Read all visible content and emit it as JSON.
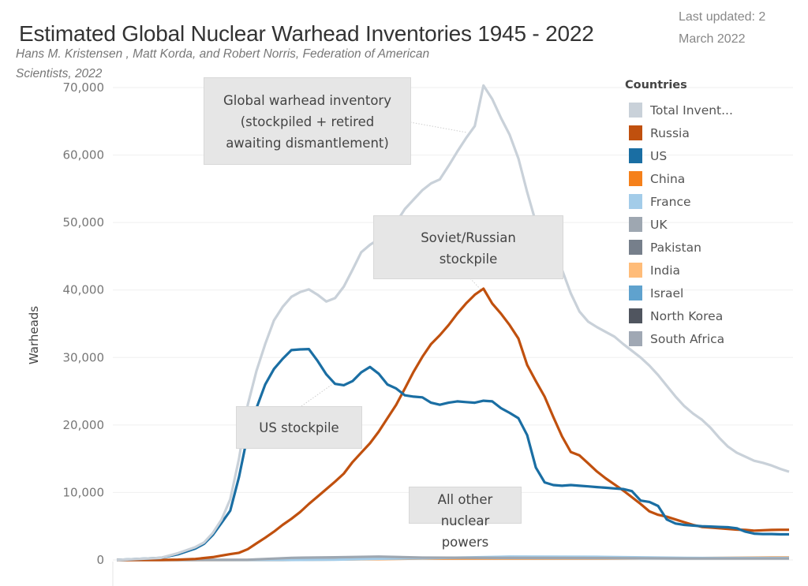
{
  "header": {
    "title": "Estimated Global Nuclear Warhead Inventories 1945 - 2022",
    "subtitle": "Hans M. Kristensen , Matt Korda, and Robert Norris, Federation of American Scientists, 2022",
    "last_updated": "Last updated: 2 March 2022"
  },
  "legend": {
    "title": "Countries",
    "items": [
      {
        "label": "Total Invent...",
        "color": "#c9d1d9"
      },
      {
        "label": "Russia",
        "color": "#c0500e"
      },
      {
        "label": "US",
        "color": "#1a6ea3"
      },
      {
        "label": "China",
        "color": "#f5801a"
      },
      {
        "label": "France",
        "color": "#a3cce9"
      },
      {
        "label": "UK",
        "color": "#9ea7b1"
      },
      {
        "label": "Pakistan",
        "color": "#767f8b"
      },
      {
        "label": "India",
        "color": "#ffbc79"
      },
      {
        "label": "Israel",
        "color": "#5fa2ce"
      },
      {
        "label": "North Korea",
        "color": "#50555f"
      },
      {
        "label": "South Africa",
        "color": "#a0a8b4"
      }
    ]
  },
  "annotations": {
    "global": "Global warhead inventory (stockpiled + retired awaiting dismantlement)",
    "global_lines": [
      "Global warhead inventory",
      "(stockpiled + retired",
      "awaiting dismantlement)"
    ],
    "soviet_lines": [
      "Soviet/Russian",
      "stockpile"
    ],
    "us": "US stockpile",
    "others_lines": [
      "All other",
      "nuclear",
      "powers"
    ]
  },
  "chart_data": {
    "type": "line",
    "title": "Estimated Global Nuclear Warhead Inventories 1945 - 2022",
    "xlabel": "",
    "ylabel": "Warheads",
    "xlim": [
      1945,
      2022
    ],
    "ylim": [
      0,
      70000
    ],
    "yticks": [
      0,
      10000,
      20000,
      30000,
      40000,
      50000,
      60000,
      70000
    ],
    "ytick_labels": [
      "0",
      "10,000",
      "20,000",
      "30,000",
      "40,000",
      "50,000",
      "60,000",
      "70,000"
    ],
    "grid": "horizontal",
    "legend_position": "right",
    "series": [
      {
        "name": "Total Invent...",
        "color": "#c9d1d9",
        "points": [
          [
            1945,
            2
          ],
          [
            1950,
            304
          ],
          [
            1952,
            1000
          ],
          [
            1954,
            1900
          ],
          [
            1955,
            2600
          ],
          [
            1956,
            4000
          ],
          [
            1957,
            6000
          ],
          [
            1958,
            9000
          ],
          [
            1959,
            15000
          ],
          [
            1960,
            23000
          ],
          [
            1961,
            28000
          ],
          [
            1962,
            32000
          ],
          [
            1963,
            35500
          ],
          [
            1964,
            37500
          ],
          [
            1965,
            39000
          ],
          [
            1966,
            39700
          ],
          [
            1967,
            40100
          ],
          [
            1968,
            39300
          ],
          [
            1969,
            38300
          ],
          [
            1970,
            38800
          ],
          [
            1971,
            40500
          ],
          [
            1972,
            43000
          ],
          [
            1973,
            45600
          ],
          [
            1974,
            46700
          ],
          [
            1975,
            47500
          ],
          [
            1976,
            47900
          ],
          [
            1977,
            50000
          ],
          [
            1978,
            52000
          ],
          [
            1979,
            53400
          ],
          [
            1980,
            54800
          ],
          [
            1981,
            55800
          ],
          [
            1982,
            56400
          ],
          [
            1983,
            58400
          ],
          [
            1984,
            60500
          ],
          [
            1985,
            62500
          ],
          [
            1986,
            64300
          ],
          [
            1987,
            70300
          ],
          [
            1988,
            68300
          ],
          [
            1989,
            65500
          ],
          [
            1990,
            63000
          ],
          [
            1991,
            59500
          ],
          [
            1992,
            54500
          ],
          [
            1993,
            50000
          ],
          [
            1994,
            46500
          ],
          [
            1995,
            44500
          ],
          [
            1996,
            43000
          ],
          [
            1997,
            39500
          ],
          [
            1998,
            36800
          ],
          [
            1999,
            35300
          ],
          [
            2000,
            34500
          ],
          [
            2001,
            33800
          ],
          [
            2002,
            33100
          ],
          [
            2003,
            32000
          ],
          [
            2004,
            31000
          ],
          [
            2005,
            30000
          ],
          [
            2006,
            28800
          ],
          [
            2007,
            27400
          ],
          [
            2008,
            25800
          ],
          [
            2009,
            24200
          ],
          [
            2010,
            22800
          ],
          [
            2011,
            21700
          ],
          [
            2012,
            20800
          ],
          [
            2013,
            19600
          ],
          [
            2014,
            18100
          ],
          [
            2015,
            16800
          ],
          [
            2016,
            15900
          ],
          [
            2017,
            15300
          ],
          [
            2018,
            14700
          ],
          [
            2019,
            14400
          ],
          [
            2020,
            14000
          ],
          [
            2021,
            13500
          ],
          [
            2022,
            13080
          ]
        ]
      },
      {
        "name": "US",
        "color": "#1a6ea3",
        "points": [
          [
            1945,
            2
          ],
          [
            1950,
            300
          ],
          [
            1952,
            840
          ],
          [
            1954,
            1700
          ],
          [
            1955,
            2400
          ],
          [
            1956,
            3700
          ],
          [
            1957,
            5500
          ],
          [
            1958,
            7300
          ],
          [
            1959,
            12300
          ],
          [
            1960,
            18600
          ],
          [
            1961,
            22500
          ],
          [
            1962,
            26000
          ],
          [
            1963,
            28300
          ],
          [
            1964,
            29800
          ],
          [
            1965,
            31100
          ],
          [
            1966,
            31200
          ],
          [
            1967,
            31250
          ],
          [
            1968,
            29500
          ],
          [
            1969,
            27500
          ],
          [
            1970,
            26100
          ],
          [
            1971,
            25900
          ],
          [
            1972,
            26500
          ],
          [
            1973,
            27800
          ],
          [
            1974,
            28600
          ],
          [
            1975,
            27600
          ],
          [
            1976,
            26000
          ],
          [
            1977,
            25400
          ],
          [
            1978,
            24400
          ],
          [
            1979,
            24200
          ],
          [
            1980,
            24100
          ],
          [
            1981,
            23300
          ],
          [
            1982,
            23000
          ],
          [
            1983,
            23300
          ],
          [
            1984,
            23500
          ],
          [
            1985,
            23400
          ],
          [
            1986,
            23300
          ],
          [
            1987,
            23600
          ],
          [
            1988,
            23500
          ],
          [
            1989,
            22500
          ],
          [
            1990,
            21800
          ],
          [
            1991,
            21000
          ],
          [
            1992,
            18500
          ],
          [
            1993,
            13700
          ],
          [
            1994,
            11500
          ],
          [
            1995,
            11100
          ],
          [
            1996,
            11000
          ],
          [
            1997,
            11100
          ],
          [
            1998,
            11000
          ],
          [
            1999,
            10900
          ],
          [
            2000,
            10800
          ],
          [
            2001,
            10700
          ],
          [
            2002,
            10600
          ],
          [
            2003,
            10500
          ],
          [
            2004,
            10200
          ],
          [
            2005,
            8800
          ],
          [
            2006,
            8600
          ],
          [
            2007,
            8000
          ],
          [
            2008,
            6000
          ],
          [
            2009,
            5400
          ],
          [
            2010,
            5200
          ],
          [
            2011,
            5100
          ],
          [
            2012,
            5000
          ],
          [
            2013,
            4950
          ],
          [
            2014,
            4900
          ],
          [
            2015,
            4850
          ],
          [
            2016,
            4700
          ],
          [
            2017,
            4200
          ],
          [
            2018,
            3900
          ],
          [
            2019,
            3850
          ],
          [
            2020,
            3850
          ],
          [
            2021,
            3800
          ],
          [
            2022,
            3800
          ]
        ]
      },
      {
        "name": "Russia",
        "color": "#c0500e",
        "points": [
          [
            1945,
            0
          ],
          [
            1949,
            1
          ],
          [
            1950,
            5
          ],
          [
            1952,
            50
          ],
          [
            1954,
            150
          ],
          [
            1956,
            426
          ],
          [
            1957,
            660
          ],
          [
            1958,
            870
          ],
          [
            1959,
            1060
          ],
          [
            1960,
            1600
          ],
          [
            1961,
            2450
          ],
          [
            1962,
            3300
          ],
          [
            1963,
            4200
          ],
          [
            1964,
            5200
          ],
          [
            1965,
            6100
          ],
          [
            1966,
            7100
          ],
          [
            1967,
            8300
          ],
          [
            1968,
            9400
          ],
          [
            1969,
            10500
          ],
          [
            1970,
            11600
          ],
          [
            1971,
            12800
          ],
          [
            1972,
            14500
          ],
          [
            1973,
            15900
          ],
          [
            1974,
            17300
          ],
          [
            1975,
            19000
          ],
          [
            1976,
            21000
          ],
          [
            1977,
            23000
          ],
          [
            1978,
            25400
          ],
          [
            1979,
            27900
          ],
          [
            1980,
            30100
          ],
          [
            1981,
            32000
          ],
          [
            1982,
            33300
          ],
          [
            1983,
            34800
          ],
          [
            1984,
            36500
          ],
          [
            1985,
            38000
          ],
          [
            1986,
            39300
          ],
          [
            1987,
            40200
          ],
          [
            1988,
            38000
          ],
          [
            1989,
            36500
          ],
          [
            1990,
            34800
          ],
          [
            1991,
            32800
          ],
          [
            1992,
            28900
          ],
          [
            1993,
            26500
          ],
          [
            1994,
            24200
          ],
          [
            1995,
            21200
          ],
          [
            1996,
            18300
          ],
          [
            1997,
            16000
          ],
          [
            1998,
            15500
          ],
          [
            1999,
            14300
          ],
          [
            2000,
            13100
          ],
          [
            2001,
            12100
          ],
          [
            2002,
            11200
          ],
          [
            2003,
            10300
          ],
          [
            2004,
            9300
          ],
          [
            2005,
            8300
          ],
          [
            2006,
            7200
          ],
          [
            2007,
            6700
          ],
          [
            2008,
            6400
          ],
          [
            2009,
            6000
          ],
          [
            2010,
            5600
          ],
          [
            2011,
            5200
          ],
          [
            2012,
            4900
          ],
          [
            2013,
            4800
          ],
          [
            2014,
            4700
          ],
          [
            2015,
            4600
          ],
          [
            2016,
            4500
          ],
          [
            2017,
            4450
          ],
          [
            2018,
            4350
          ],
          [
            2019,
            4400
          ],
          [
            2020,
            4450
          ],
          [
            2021,
            4480
          ],
          [
            2022,
            4477
          ]
        ]
      },
      {
        "name": "UK",
        "color": "#9ea7b1",
        "points": [
          [
            1945,
            0
          ],
          [
            1953,
            1
          ],
          [
            1960,
            30
          ],
          [
            1965,
            310
          ],
          [
            1970,
            394
          ],
          [
            1975,
            500
          ],
          [
            1980,
            350
          ],
          [
            1990,
            300
          ],
          [
            2000,
            280
          ],
          [
            2010,
            225
          ],
          [
            2022,
            225
          ]
        ]
      },
      {
        "name": "France",
        "color": "#a3cce9",
        "points": [
          [
            1945,
            0
          ],
          [
            1964,
            4
          ],
          [
            1970,
            36
          ],
          [
            1975,
            188
          ],
          [
            1980,
            250
          ],
          [
            1985,
            360
          ],
          [
            1990,
            505
          ],
          [
            2000,
            470
          ],
          [
            2010,
            300
          ],
          [
            2022,
            290
          ]
        ]
      },
      {
        "name": "China",
        "color": "#f5801a",
        "points": [
          [
            1945,
            0
          ],
          [
            1964,
            1
          ],
          [
            1970,
            75
          ],
          [
            1980,
            205
          ],
          [
            1990,
            232
          ],
          [
            2000,
            232
          ],
          [
            2010,
            260
          ],
          [
            2020,
            350
          ],
          [
            2022,
            350
          ]
        ]
      }
    ]
  }
}
